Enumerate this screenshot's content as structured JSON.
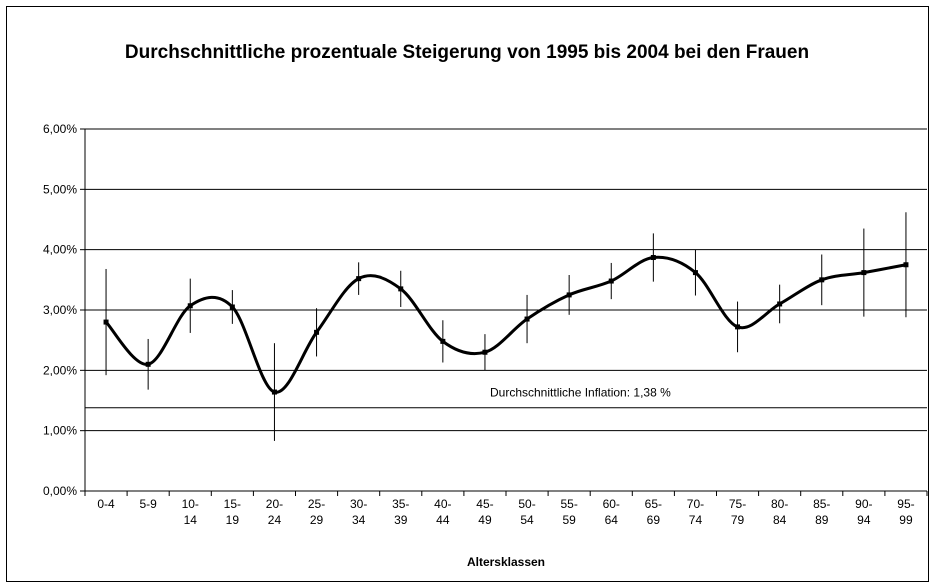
{
  "chart_data": {
    "type": "line",
    "title": "Durchschnittliche prozentuale Steigerung von 1995 bis 2004 bei den Frauen",
    "x_label": "Altersklassen",
    "categories": [
      "0-4",
      "5-9",
      "10-14",
      "15-19",
      "20-24",
      "25-29",
      "30-34",
      "35-39",
      "40-44",
      "45-49",
      "50-54",
      "55-59",
      "60-64",
      "65-69",
      "70-74",
      "75-79",
      "80-84",
      "85-89",
      "90-94",
      "95-99"
    ],
    "series": [
      {
        "name": "Steigerung",
        "color": "#000000",
        "values": [
          2.8,
          2.1,
          3.07,
          3.05,
          1.64,
          2.63,
          3.52,
          3.35,
          2.48,
          2.3,
          2.85,
          3.25,
          3.48,
          3.87,
          3.62,
          2.72,
          3.1,
          3.5,
          3.62,
          3.75
        ],
        "errors": [
          0.88,
          0.42,
          0.45,
          0.28,
          0.81,
          0.4,
          0.27,
          0.3,
          0.35,
          0.3,
          0.4,
          0.33,
          0.3,
          0.4,
          0.38,
          0.42,
          0.32,
          0.42,
          0.73,
          0.87
        ]
      }
    ],
    "reference_line": {
      "value": 1.38,
      "label": "Durchschnittliche Inflation: 1,38 %"
    },
    "ylim": [
      0,
      6
    ],
    "yticks": [
      {
        "value": 0,
        "label": "0,00%"
      },
      {
        "value": 1,
        "label": "1,00%"
      },
      {
        "value": 2,
        "label": "2,00%"
      },
      {
        "value": 3,
        "label": "3,00%"
      },
      {
        "value": 4,
        "label": "4,00%"
      },
      {
        "value": 5,
        "label": "5,00%"
      },
      {
        "value": 6,
        "label": "6,00%"
      }
    ],
    "grid": true
  }
}
